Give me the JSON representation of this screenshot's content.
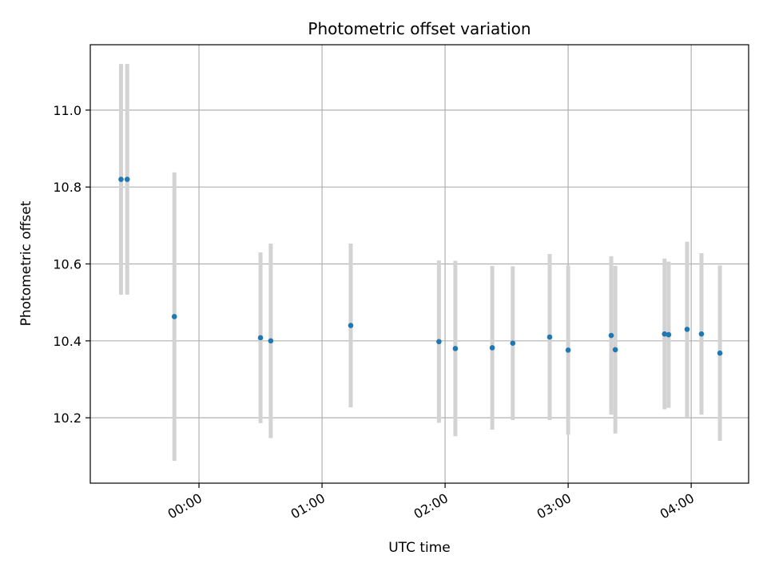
{
  "chart_data": {
    "type": "scatter",
    "title": "Photometric offset variation",
    "xlabel": "UTC time",
    "ylabel": "Photometric offset",
    "x_ticks": [
      "00:00",
      "01:00",
      "02:00",
      "03:00",
      "04:00"
    ],
    "y_ticks": [
      "10.2",
      "10.4",
      "10.6",
      "10.8",
      "11.0"
    ],
    "xlim": [
      "-00:53",
      "04:28"
    ],
    "ylim": [
      10.03,
      11.17
    ],
    "grid": true,
    "colors": {
      "point": "#1f77b4",
      "errorbar": "#d3d3d3",
      "grid": "#b0b0b0"
    },
    "points": [
      {
        "x": "-00:38",
        "y": 10.82,
        "yerr": 0.3
      },
      {
        "x": "-00:35",
        "y": 10.82,
        "yerr": 0.3
      },
      {
        "x": "-00:12",
        "y": 10.463,
        "yerr": 0.375
      },
      {
        "x": "00:30",
        "y": 10.408,
        "yerr": 0.222
      },
      {
        "x": "00:35",
        "y": 10.4,
        "yerr": 0.253
      },
      {
        "x": "01:14",
        "y": 10.44,
        "yerr": 0.213
      },
      {
        "x": "01:57",
        "y": 10.398,
        "yerr": 0.211
      },
      {
        "x": "02:05",
        "y": 10.38,
        "yerr": 0.228
      },
      {
        "x": "02:23",
        "y": 10.382,
        "yerr": 0.213
      },
      {
        "x": "02:33",
        "y": 10.394,
        "yerr": 0.2
      },
      {
        "x": "02:51",
        "y": 10.41,
        "yerr": 0.216
      },
      {
        "x": "03:00",
        "y": 10.376,
        "yerr": 0.22
      },
      {
        "x": "03:21",
        "y": 10.414,
        "yerr": 0.206
      },
      {
        "x": "03:23",
        "y": 10.377,
        "yerr": 0.218
      },
      {
        "x": "03:47",
        "y": 10.418,
        "yerr": 0.196
      },
      {
        "x": "03:49",
        "y": 10.416,
        "yerr": 0.19
      },
      {
        "x": "03:58",
        "y": 10.43,
        "yerr": 0.228
      },
      {
        "x": "04:05",
        "y": 10.418,
        "yerr": 0.21
      },
      {
        "x": "04:14",
        "y": 10.368,
        "yerr": 0.228
      }
    ]
  }
}
